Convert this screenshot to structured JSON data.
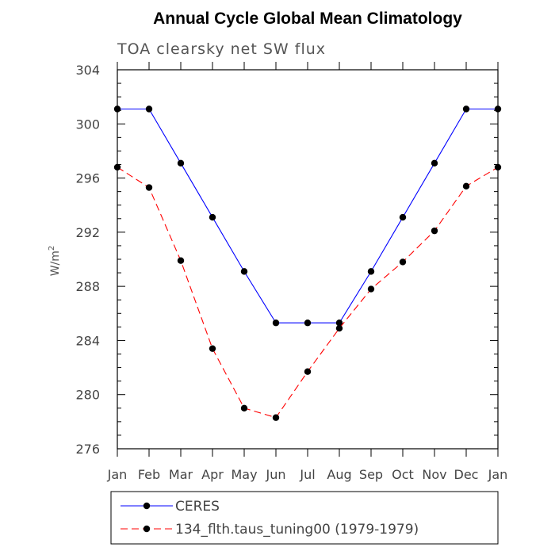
{
  "chart_data": {
    "type": "line",
    "title": "Annual Cycle Global Mean Climatology",
    "subtitle": "TOA clearsky net SW flux",
    "ylabel": "W/m",
    "ylabel_sup": "2",
    "xlabel": "",
    "categories": [
      "Jan",
      "Feb",
      "Mar",
      "Apr",
      "May",
      "Jun",
      "Jul",
      "Aug",
      "Sep",
      "Oct",
      "Nov",
      "Dec",
      "Jan"
    ],
    "ylim": [
      276,
      304
    ],
    "yticks": [
      276,
      280,
      284,
      288,
      292,
      296,
      300,
      304
    ],
    "legend_position": "bottom",
    "series": [
      {
        "name": "CERES",
        "color": "#0000ff",
        "dash": "solid",
        "marker": "circle",
        "values": [
          301.1,
          301.1,
          297.1,
          293.1,
          289.1,
          285.3,
          285.3,
          285.3,
          289.1,
          293.1,
          297.1,
          301.1,
          301.1
        ]
      },
      {
        "name": "134_flth.taus_tuning00 (1979-1979)",
        "color": "#ff0000",
        "dash": "dashed",
        "marker": "circle",
        "values": [
          296.8,
          295.3,
          289.9,
          283.4,
          279.0,
          278.3,
          281.7,
          284.9,
          287.8,
          289.8,
          292.1,
          295.4,
          296.8
        ]
      }
    ]
  }
}
